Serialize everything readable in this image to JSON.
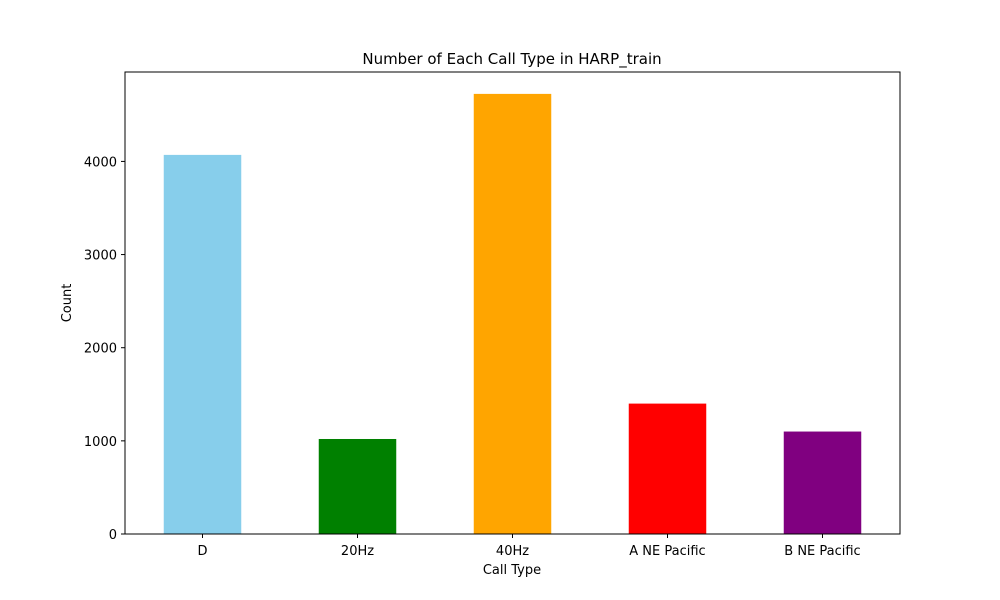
{
  "chart_data": {
    "type": "bar",
    "title": "Number of Each Call Type in HARP_train",
    "xlabel": "Call Type",
    "ylabel": "Count",
    "categories": [
      "D",
      "20Hz",
      "40Hz",
      "A NE Pacific",
      "B NE Pacific"
    ],
    "values": [
      4070,
      1020,
      4725,
      1400,
      1100
    ],
    "colors": [
      "#87ceeb",
      "#008000",
      "#ffa500",
      "#ff0000",
      "#800080"
    ],
    "ylim": [
      0,
      4960
    ],
    "yticks": [
      0,
      1000,
      2000,
      3000,
      4000
    ],
    "grid": false,
    "legend": "none"
  }
}
